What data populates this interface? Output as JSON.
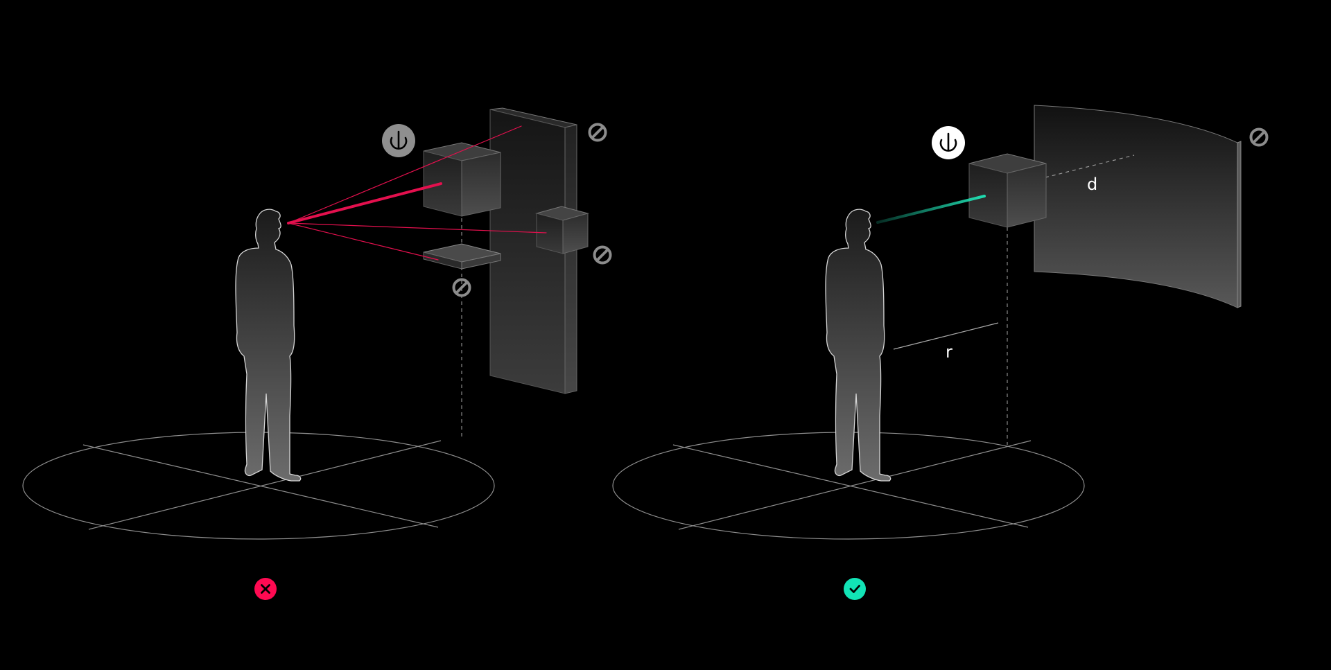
{
  "panels": [
    {
      "id": "incorrect",
      "status": "incorrect",
      "status_icon": "x-icon",
      "status_color": "#ff0a52",
      "ray_color": "#e4104e",
      "anchor_icon": "anchor-icon",
      "blocked_icon": "no-entry-icon"
    },
    {
      "id": "correct",
      "status": "correct",
      "status_icon": "check-icon",
      "status_color": "#12e3b6",
      "ray_color": "#1fdcb0",
      "anchor_icon": "anchor-icon",
      "blocked_icon": "no-entry-icon",
      "labels": {
        "distance": "d",
        "radius": "r"
      }
    }
  ],
  "colors": {
    "background": "#000000",
    "floor_lines": "#9a9a9a",
    "blocked_icon": "#8c8c8c",
    "anchor_inactive": "#8f8f8f",
    "anchor_active": "#ffffff"
  }
}
